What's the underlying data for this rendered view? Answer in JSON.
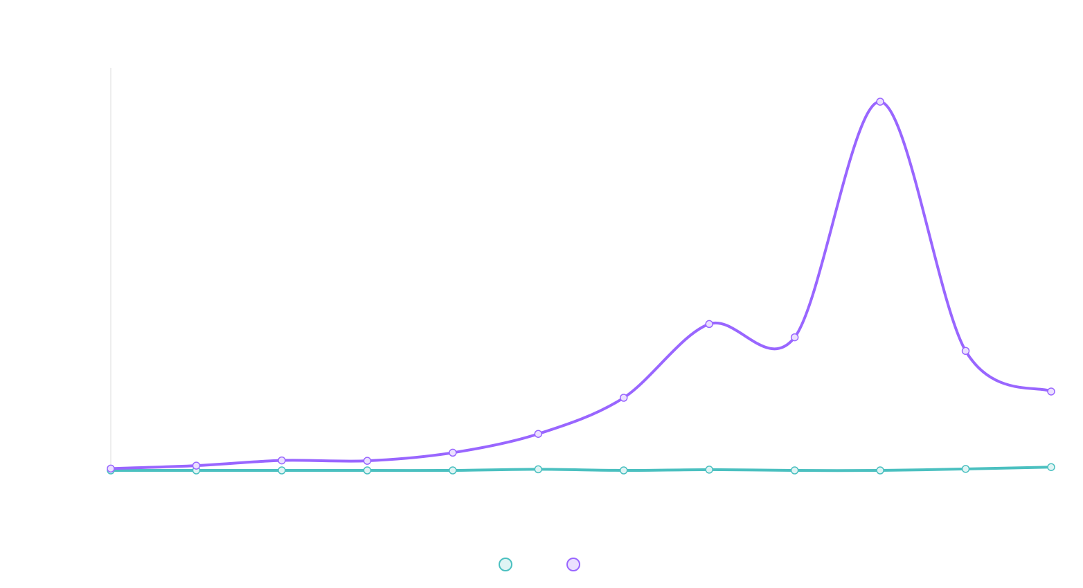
{
  "chart_data": {
    "type": "line",
    "title": "",
    "xlabel": "",
    "ylabel": "",
    "ylim": [
      0,
      100
    ],
    "grid": false,
    "legend_position": "bottom",
    "categories": [
      "",
      "",
      "",
      "",
      "",
      "",
      "",
      "",
      "",
      "",
      "",
      ""
    ],
    "series": [
      {
        "name": "",
        "color": "#4bc0c0",
        "fill": "#dff4f4",
        "values": [
          0.0,
          0.0,
          0.0,
          0.0,
          0.0,
          0.3,
          0.0,
          0.2,
          0.0,
          0.0,
          0.4,
          0.9
        ]
      },
      {
        "name": "",
        "color": "#9966ff",
        "fill": "#ebe0ff",
        "values": [
          0.5,
          1.3,
          2.7,
          2.6,
          4.8,
          9.9,
          19.7,
          39.7,
          36.1,
          100.0,
          32.4,
          21.4
        ]
      }
    ]
  }
}
